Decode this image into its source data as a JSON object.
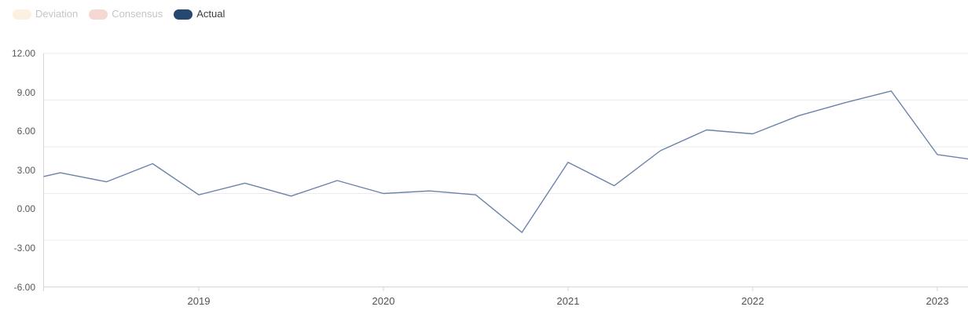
{
  "legend": {
    "items": [
      {
        "key": "deviation",
        "label": "Deviation",
        "swatch_color": "#fcf1e1",
        "text_color": "#c5c5c5",
        "active": false
      },
      {
        "key": "consensus",
        "label": "Consensus",
        "swatch_color": "#f5d8d3",
        "text_color": "#c5c5c5",
        "active": false
      },
      {
        "key": "actual",
        "label": "Actual",
        "swatch_color": "#26476f",
        "text_color": "#3d3d3d",
        "active": true
      }
    ]
  },
  "chart_data": {
    "type": "line",
    "title": "",
    "xlabel": "",
    "ylabel": "",
    "categories": [
      "2018 Q1",
      "2018 Q2",
      "2018 Q3",
      "2018 Q4",
      "2019 Q1",
      "2019 Q2",
      "2019 Q3",
      "2019 Q4",
      "2020 Q1",
      "2020 Q2",
      "2020 Q3",
      "2020 Q4",
      "2021 Q1",
      "2021 Q2",
      "2021 Q3",
      "2021 Q4",
      "2022 Q1",
      "2022 Q2",
      "2022 Q3",
      "2022 Q4",
      "2023 Q1",
      "2023 Q2"
    ],
    "series": [
      {
        "name": "Actual",
        "color": "#6b83ab",
        "visible": true,
        "values": [
          2.0,
          2.8,
          2.1,
          3.5,
          1.1,
          2.0,
          1.0,
          2.2,
          1.2,
          1.4,
          1.1,
          -1.8,
          3.6,
          1.8,
          4.5,
          6.1,
          5.8,
          7.2,
          8.2,
          9.1,
          4.2,
          3.7
        ]
      },
      {
        "name": "Consensus",
        "color": "#f5d8d3",
        "visible": false,
        "values": []
      },
      {
        "name": "Deviation",
        "color": "#fcf1e1",
        "visible": false,
        "values": []
      }
    ],
    "x_tick_labels": [
      "2019",
      "2020",
      "2021",
      "2022",
      "2023"
    ],
    "y_tick_labels": [
      "12.00",
      "9.00",
      "6.00",
      "3.00",
      "0.00",
      "-3.00",
      "-6.00"
    ],
    "ylim": [
      -6,
      12
    ],
    "grid": true,
    "legend_position": "top-left",
    "colors": {
      "gridline": "#ebebeb",
      "axis_line": "#d6d6d6",
      "tick": "#d6d6d6",
      "axis_text": "#575757",
      "background": "#ffffff"
    }
  }
}
